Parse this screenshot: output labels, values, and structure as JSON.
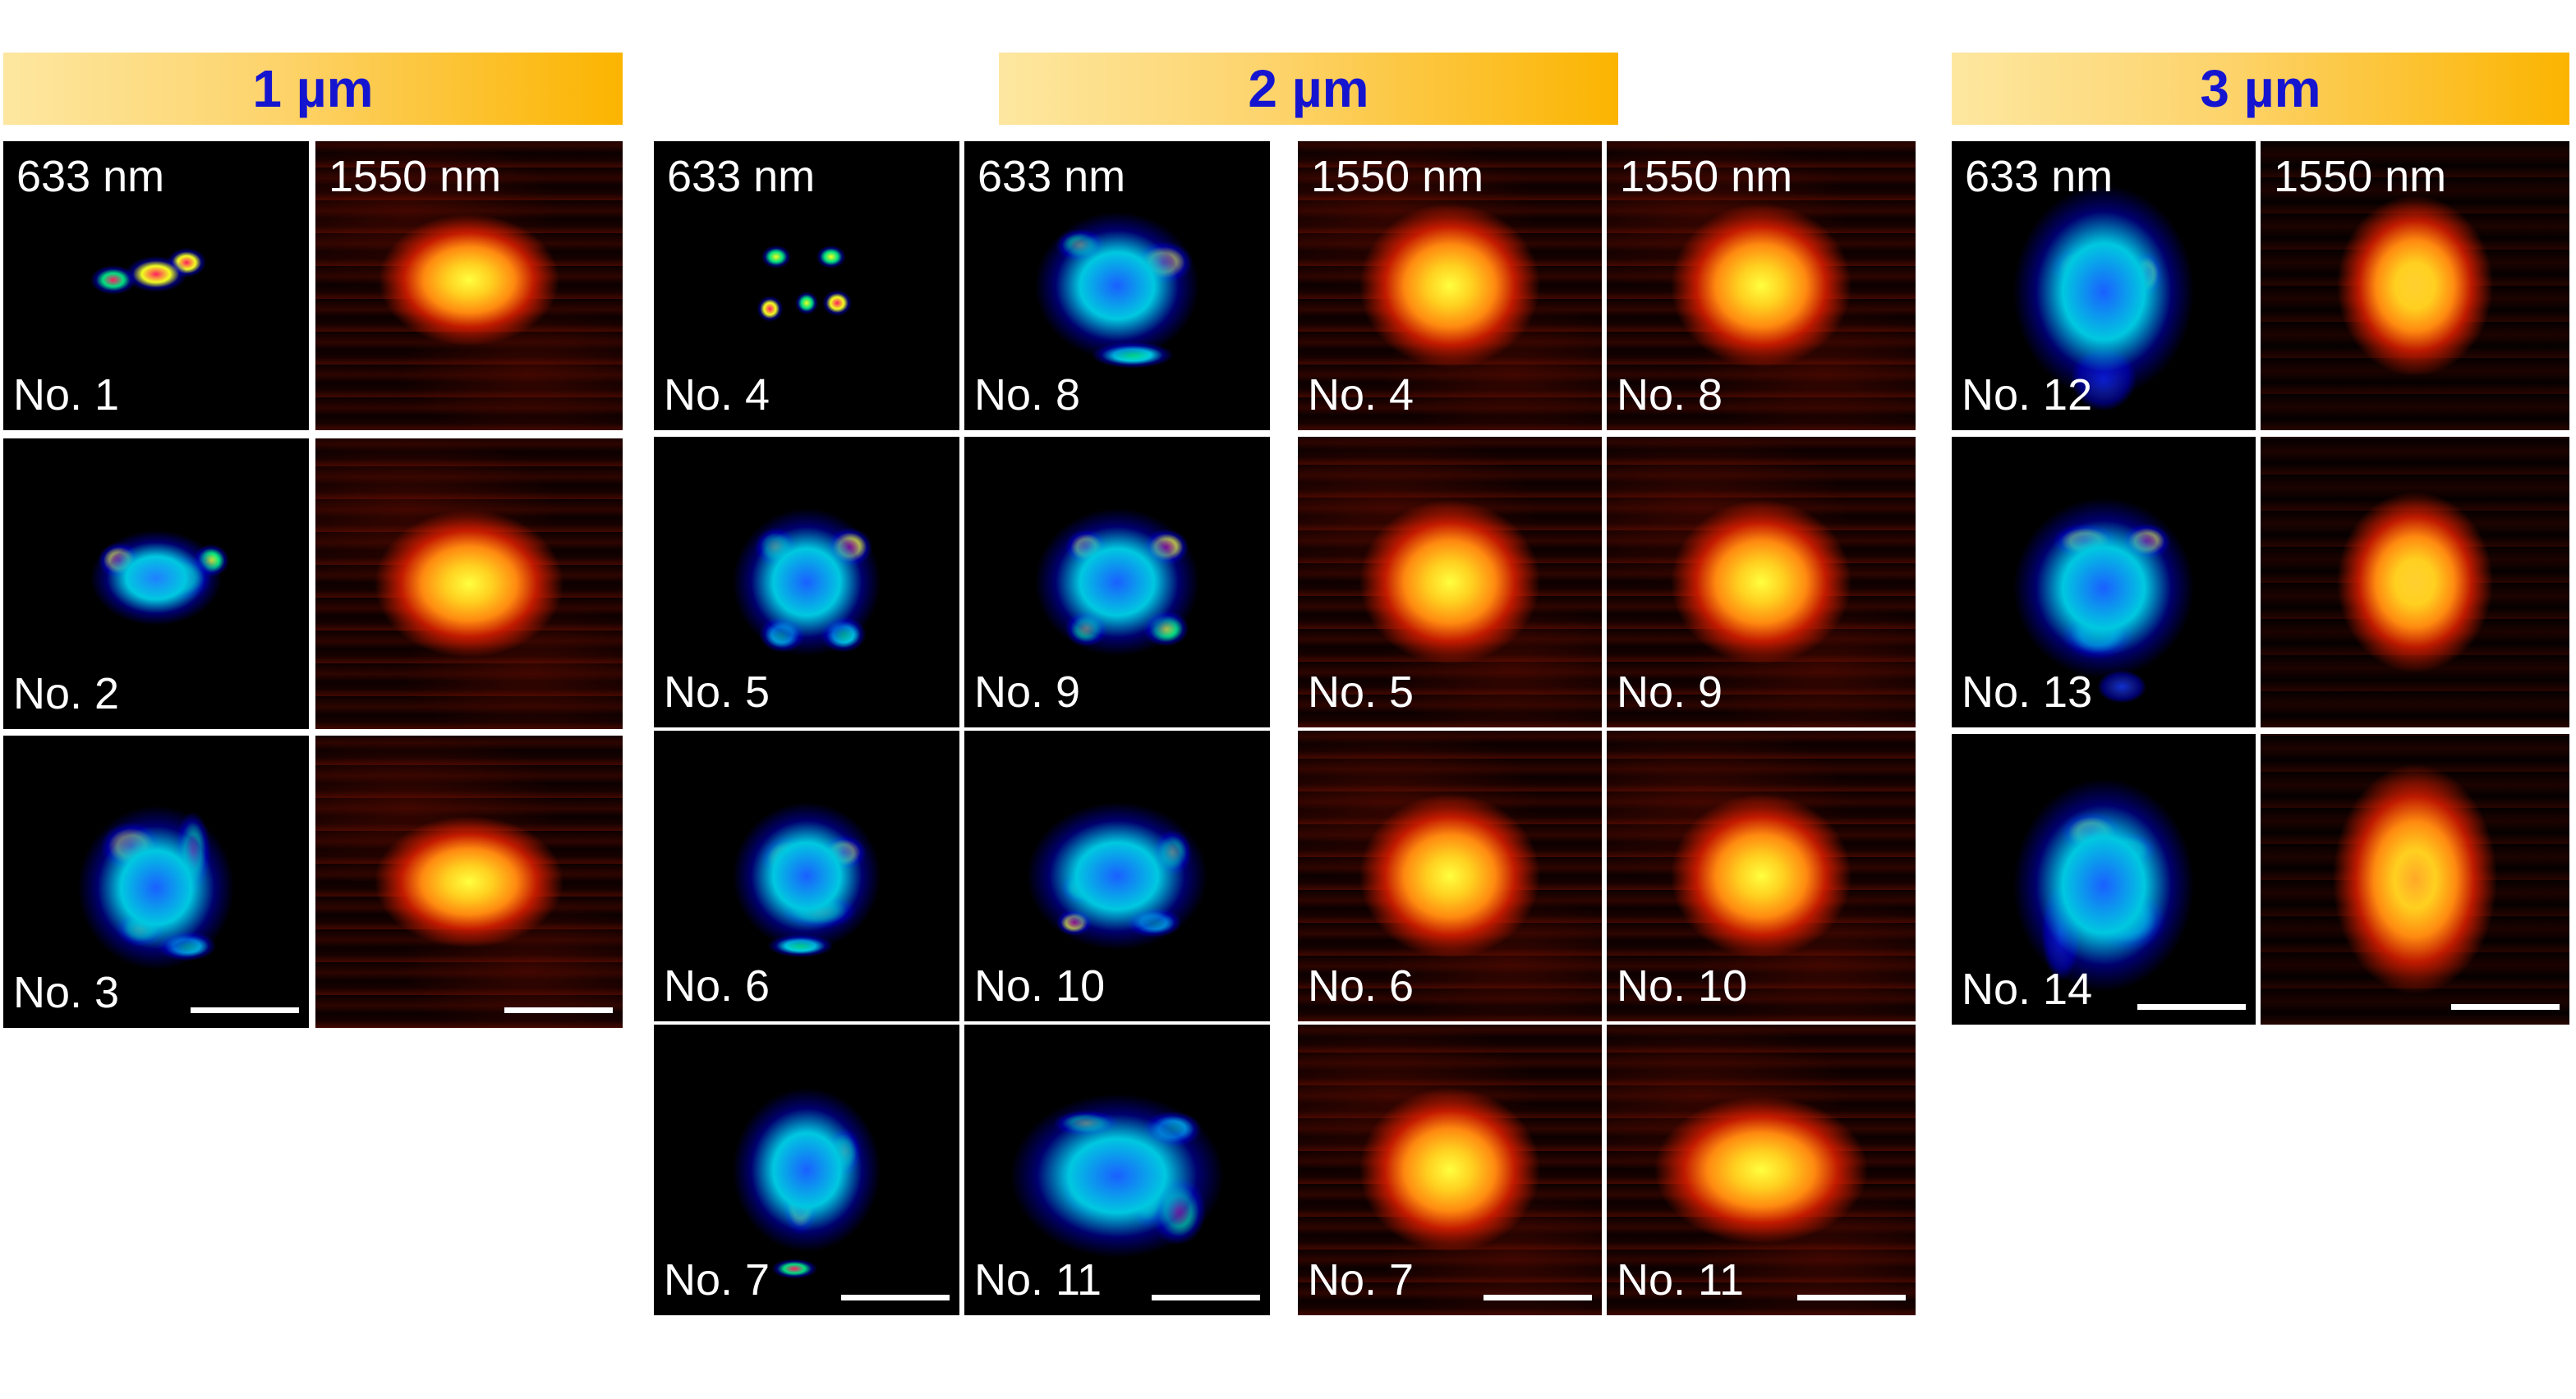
{
  "groups": [
    {
      "title": "1 µm"
    },
    {
      "title": "2 µm"
    },
    {
      "title": "3 µm"
    }
  ],
  "panels": [
    {
      "wavelength": "633 nm",
      "label": "No. 1",
      "type": "vis",
      "scalebar": false
    },
    {
      "wavelength": "1550 nm",
      "label": "",
      "type": "ir",
      "scalebar": false
    },
    {
      "wavelength": "",
      "label": "No. 2",
      "type": "vis",
      "scalebar": false
    },
    {
      "wavelength": "",
      "label": "",
      "type": "ir",
      "scalebar": false
    },
    {
      "wavelength": "",
      "label": "No. 3",
      "type": "vis",
      "scalebar": true
    },
    {
      "wavelength": "",
      "label": "",
      "type": "ir",
      "scalebar": true
    },
    {
      "wavelength": "633 nm",
      "label": "No. 4",
      "type": "vis",
      "scalebar": false
    },
    {
      "wavelength": "633 nm",
      "label": "No. 8",
      "type": "vis",
      "scalebar": false
    },
    {
      "wavelength": "1550 nm",
      "label": "No. 4",
      "type": "ir",
      "scalebar": false
    },
    {
      "wavelength": "1550 nm",
      "label": "No. 8",
      "type": "ir",
      "scalebar": false
    },
    {
      "wavelength": "",
      "label": "No. 5",
      "type": "vis",
      "scalebar": false
    },
    {
      "wavelength": "",
      "label": "No. 9",
      "type": "vis",
      "scalebar": false
    },
    {
      "wavelength": "",
      "label": "No. 5",
      "type": "ir",
      "scalebar": false
    },
    {
      "wavelength": "",
      "label": "No. 9",
      "type": "ir",
      "scalebar": false
    },
    {
      "wavelength": "",
      "label": "No. 6",
      "type": "vis",
      "scalebar": false
    },
    {
      "wavelength": "",
      "label": "No. 10",
      "type": "vis",
      "scalebar": false
    },
    {
      "wavelength": "",
      "label": "No. 6",
      "type": "ir",
      "scalebar": false
    },
    {
      "wavelength": "",
      "label": "No. 10",
      "type": "ir",
      "scalebar": false
    },
    {
      "wavelength": "",
      "label": "No. 7",
      "type": "vis",
      "scalebar": true
    },
    {
      "wavelength": "",
      "label": "No. 11",
      "type": "vis",
      "scalebar": true
    },
    {
      "wavelength": "",
      "label": "No. 7",
      "type": "ir",
      "scalebar": true
    },
    {
      "wavelength": "",
      "label": "No. 11",
      "type": "ir",
      "scalebar": true
    },
    {
      "wavelength": "633 nm",
      "label": "No. 12",
      "type": "vis",
      "scalebar": false
    },
    {
      "wavelength": "1550 nm",
      "label": "",
      "type": "ir",
      "scalebar": false
    },
    {
      "wavelength": "",
      "label": "No. 13",
      "type": "vis",
      "scalebar": false
    },
    {
      "wavelength": "",
      "label": "",
      "type": "ir",
      "scalebar": false
    },
    {
      "wavelength": "",
      "label": "No. 14",
      "type": "vis",
      "scalebar": true
    },
    {
      "wavelength": "",
      "label": "",
      "type": "ir",
      "scalebar": true
    }
  ]
}
